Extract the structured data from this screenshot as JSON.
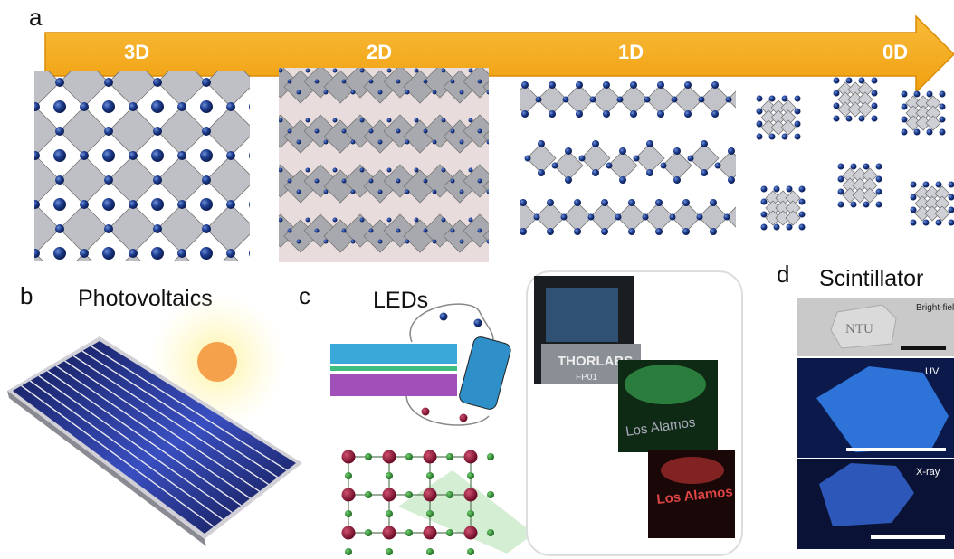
{
  "panel_a": {
    "label": "a",
    "dimensions": [
      "3D",
      "2D",
      "1D",
      "0D"
    ]
  },
  "panel_b": {
    "label": "b",
    "title": "Photovoltaics"
  },
  "panel_c": {
    "label": "c",
    "title": "LEDs",
    "photo_texts": [
      "THORLABS",
      "FP01",
      "Los Alamos",
      "Los Alamos"
    ]
  },
  "panel_d": {
    "label": "d",
    "title": "Scintillator",
    "photo_labels": [
      "Bright-field",
      "UV",
      "X-ray"
    ],
    "sample_text": "NTU"
  }
}
